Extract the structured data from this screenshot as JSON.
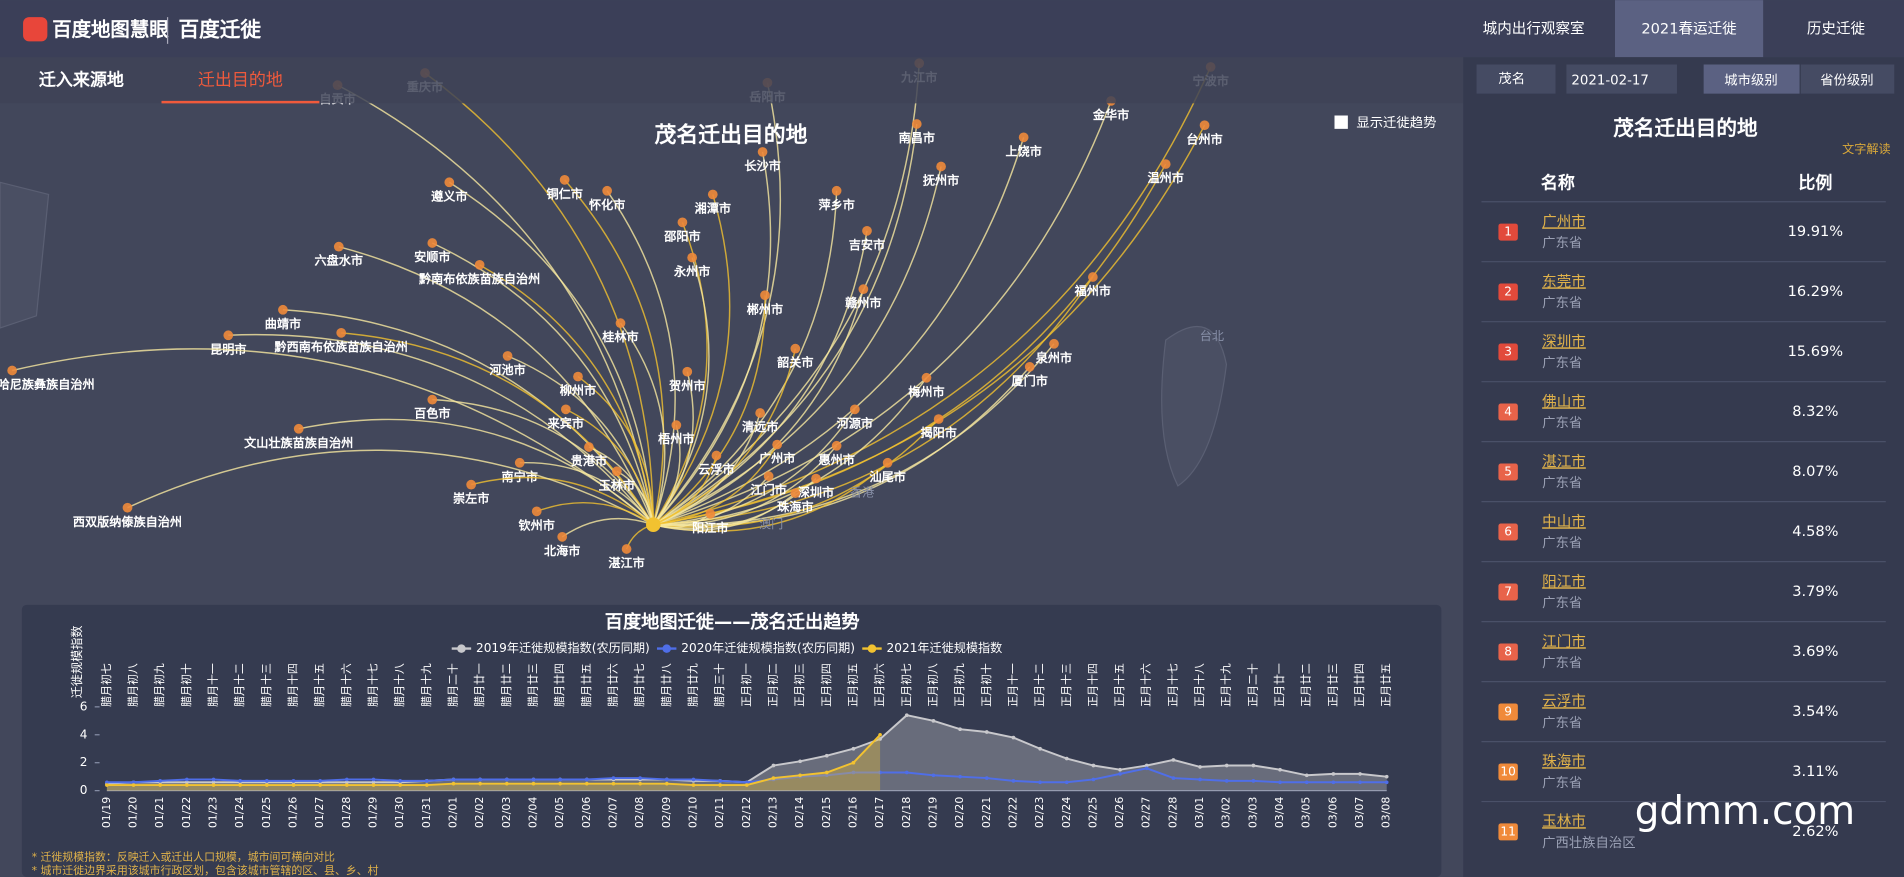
{
  "header": {
    "logo": "百度地图慧眼",
    "product": "百度迁徙",
    "nav": [
      "城内出行观察室",
      "2021春运迁徙",
      "历史迁徙"
    ]
  },
  "tabs": [
    "迁入来源地",
    "迁出目的地"
  ],
  "controls": {
    "city": "茂名",
    "date": "2021-02-17",
    "levels": [
      "城市级别",
      "省份级别"
    ],
    "show_trend": "显示迁徙趋势"
  },
  "map": {
    "title": "茂名迁出目的地",
    "cities": [
      "重庆市",
      "自贡市",
      "九江市",
      "宁波市",
      "岳阳市",
      "金华市",
      "台州市",
      "南昌市",
      "上饶市",
      "温州市",
      "长沙市",
      "抚州市",
      "铜仁市",
      "怀化市",
      "遵义市",
      "湘潭市",
      "萍乡市",
      "吉安市",
      "邵阳市",
      "六盘水市",
      "安顺市",
      "黔南布依族苗族自治州",
      "永州市",
      "赣州市",
      "郴州市",
      "曲靖市",
      "昆明市",
      "黔西南布依族苗族自治州",
      "桂林市",
      "河池市",
      "韶关市",
      "泉州市",
      "厦门市",
      "福州市",
      "梅州市",
      "红河哈尼族彝族自治州",
      "柳州市",
      "贺州市",
      "百色市",
      "来宾市",
      "清远市",
      "河源市",
      "揭阳市",
      "文山壮族苗族自治州",
      "梧州市",
      "广州市",
      "惠州市",
      "贵港市",
      "云浮市",
      "南宁市",
      "玉林市",
      "汕尾市",
      "江门市",
      "深圳市",
      "崇左市",
      "珠海市",
      "西双版纳傣族自治州",
      "钦州市",
      "阳江市",
      "北海市",
      "湛江市"
    ],
    "places": [
      "香港",
      "澳门",
      "台北"
    ]
  },
  "ranking": {
    "title": "茂名迁出目的地",
    "explain": "文字解读",
    "headers": [
      "名称",
      "比例"
    ],
    "rows": [
      [
        1,
        "广州市",
        "广东省",
        "19.91%"
      ],
      [
        2,
        "东莞市",
        "广东省",
        "16.29%"
      ],
      [
        3,
        "深圳市",
        "广东省",
        "15.69%"
      ],
      [
        4,
        "佛山市",
        "广东省",
        "8.32%"
      ],
      [
        5,
        "湛江市",
        "广东省",
        "8.07%"
      ],
      [
        6,
        "中山市",
        "广东省",
        "4.58%"
      ],
      [
        7,
        "阳江市",
        "广东省",
        "3.79%"
      ],
      [
        8,
        "江门市",
        "广东省",
        "3.69%"
      ],
      [
        9,
        "云浮市",
        "广东省",
        "3.54%"
      ],
      [
        10,
        "珠海市",
        "广东省",
        "3.11%"
      ],
      [
        11,
        "玉林市",
        "广西壮族自治区",
        "2.62%"
      ]
    ]
  },
  "chart_data": {
    "type": "line",
    "title": "百度地图迁徙——茂名迁出趋势",
    "y_label": "迁徙规模指数",
    "categories": [
      "01/19",
      "01/20",
      "01/21",
      "01/22",
      "01/23",
      "01/24",
      "01/25",
      "01/26",
      "01/27",
      "01/28",
      "01/29",
      "01/30",
      "01/31",
      "02/01",
      "02/02",
      "02/03",
      "02/04",
      "02/05",
      "02/06",
      "02/07",
      "02/08",
      "02/09",
      "02/10",
      "02/11",
      "02/12",
      "02/13",
      "02/14",
      "02/15",
      "02/16",
      "02/17",
      "02/18",
      "02/19",
      "02/20",
      "02/21",
      "02/22",
      "02/23",
      "02/24",
      "02/25",
      "02/26",
      "02/27",
      "02/28",
      "03/01",
      "03/02",
      "03/03",
      "03/04",
      "03/05",
      "03/06",
      "03/07",
      "03/08"
    ],
    "lunar_categories": [
      "腊月初七",
      "腊月初八",
      "腊月初九",
      "腊月初十",
      "腊月十一",
      "腊月十二",
      "腊月十三",
      "腊月十四",
      "腊月十五",
      "腊月十六",
      "腊月十七",
      "腊月十八",
      "腊月十九",
      "腊月二十",
      "腊月廿一",
      "腊月廿二",
      "腊月廿三",
      "腊月廿四",
      "腊月廿五",
      "腊月廿六",
      "腊月廿七",
      "腊月廿八",
      "腊月廿九",
      "腊月三十",
      "正月初一",
      "正月初二",
      "正月初三",
      "正月初四",
      "正月初五",
      "正月初六",
      "正月初七",
      "正月初八",
      "正月初九",
      "正月初十",
      "正月十一",
      "正月十二",
      "正月十三",
      "正月十四",
      "正月十五",
      "正月十六",
      "正月十七",
      "正月十八",
      "正月十九",
      "正月二十",
      "正月廿一",
      "正月廿二",
      "正月廿三",
      "正月廿四",
      "正月廿五"
    ],
    "series": [
      {
        "name": "2019年迁徙规模指数(农历同期)",
        "color": "#c8c8cc",
        "values": [
          0.5,
          0.6,
          0.6,
          0.6,
          0.6,
          0.6,
          0.6,
          0.6,
          0.6,
          0.6,
          0.6,
          0.6,
          0.7,
          0.8,
          0.8,
          0.8,
          0.8,
          0.8,
          0.8,
          0.8,
          0.8,
          0.8,
          0.7,
          0.7,
          0.6,
          1.8,
          2.1,
          2.5,
          3.0,
          3.7,
          5.4,
          5.0,
          4.4,
          4.2,
          3.8,
          3.0,
          2.3,
          1.8,
          1.5,
          1.8,
          2.2,
          1.7,
          1.8,
          1.8,
          1.5,
          1.1,
          1.2,
          1.2,
          1.0
        ]
      },
      {
        "name": "2020年迁徙规模指数(农历同期)",
        "color": "#4f6ee8",
        "values": [
          0.6,
          0.6,
          0.7,
          0.8,
          0.8,
          0.7,
          0.7,
          0.7,
          0.7,
          0.8,
          0.8,
          0.7,
          0.7,
          0.8,
          0.8,
          0.8,
          0.8,
          0.8,
          0.8,
          0.9,
          0.9,
          0.8,
          0.8,
          0.7,
          0.6,
          0.8,
          1.0,
          1.1,
          1.3,
          1.3,
          1.3,
          1.1,
          1.0,
          0.9,
          0.7,
          0.6,
          0.6,
          0.8,
          1.2,
          1.6,
          0.9,
          0.8,
          0.7,
          0.7,
          0.6,
          0.6,
          0.6,
          0.6,
          0.6
        ]
      },
      {
        "name": "2021年迁徙规模指数",
        "color": "#f2c230",
        "values": [
          0.4,
          0.4,
          0.4,
          0.4,
          0.4,
          0.4,
          0.4,
          0.4,
          0.4,
          0.4,
          0.4,
          0.4,
          0.4,
          0.5,
          0.5,
          0.5,
          0.5,
          0.5,
          0.5,
          0.5,
          0.5,
          0.5,
          0.4,
          0.4,
          0.4,
          0.9,
          1.1,
          1.3,
          2.0,
          4.0,
          null,
          null,
          null,
          null,
          null,
          null,
          null,
          null,
          null,
          null,
          null,
          null,
          null,
          null,
          null,
          null,
          null,
          null,
          null
        ]
      }
    ],
    "ylim": [
      0,
      6
    ],
    "yticks": [
      0,
      2,
      4,
      6
    ],
    "grid": false,
    "notes": [
      "* 迁徙规模指数：反映迁入或迁出人口规模，城市间可横向对比",
      "* 城市迁徙边界采用该城市行政区划，包含该城市管辖的区、县、乡、村"
    ]
  },
  "watermark": "gdmm.com"
}
